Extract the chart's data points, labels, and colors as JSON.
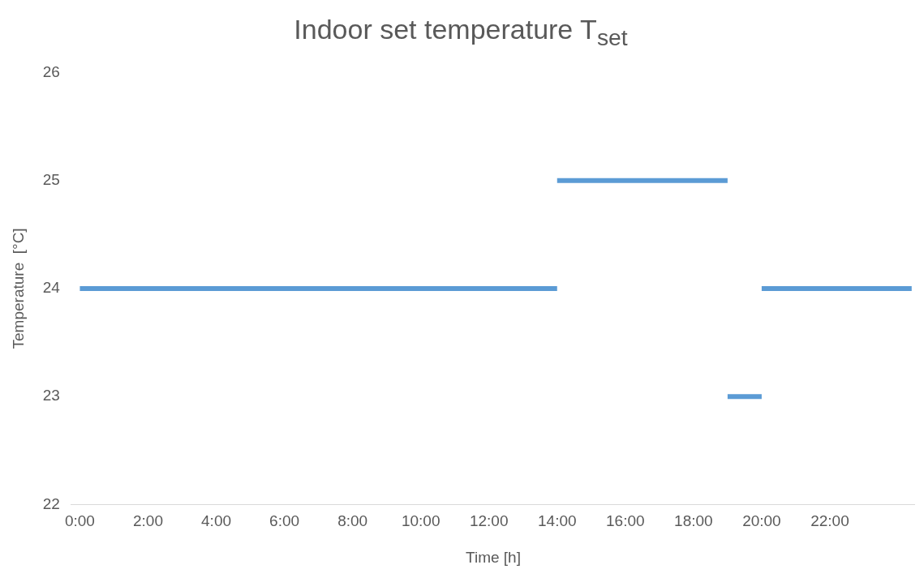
{
  "chart_data": {
    "type": "line",
    "title": "Indoor set temperature T$_{set}$",
    "xlabel": "Time [h]",
    "ylabel": "Temperature  [°C]",
    "series": [
      {
        "color": "#5b9bd5",
        "x": [
          0,
          14
        ],
        "values": [
          24,
          24
        ]
      },
      {
        "color": "#5b9bd5",
        "x": [
          14,
          19
        ],
        "values": [
          25,
          25
        ]
      },
      {
        "color": "#5b9bd5",
        "x": [
          19,
          20
        ],
        "values": [
          23,
          23
        ]
      },
      {
        "color": "#5b9bd5",
        "x": [
          20,
          24.4
        ],
        "values": [
          24,
          24
        ]
      }
    ],
    "xlim": [
      -0.25,
      24.5
    ],
    "xticks": [
      {
        "value": 0,
        "label": "0:00"
      },
      {
        "value": 2,
        "label": "2:00"
      },
      {
        "value": 4,
        "label": "4:00"
      },
      {
        "value": 6,
        "label": "6:00"
      },
      {
        "value": 8,
        "label": "8:00"
      },
      {
        "value": 10,
        "label": "10:00"
      },
      {
        "value": 12,
        "label": "12:00"
      },
      {
        "value": 14,
        "label": "14:00"
      },
      {
        "value": 16,
        "label": "16:00"
      },
      {
        "value": 18,
        "label": "18:00"
      },
      {
        "value": 20,
        "label": "20:00"
      },
      {
        "value": 22,
        "label": "22:00"
      }
    ],
    "ylim": [
      22,
      26
    ],
    "yticks": [
      22,
      23,
      24,
      25,
      26
    ],
    "grid": false,
    "legend": false,
    "marker": "none",
    "line_style": "solid"
  }
}
